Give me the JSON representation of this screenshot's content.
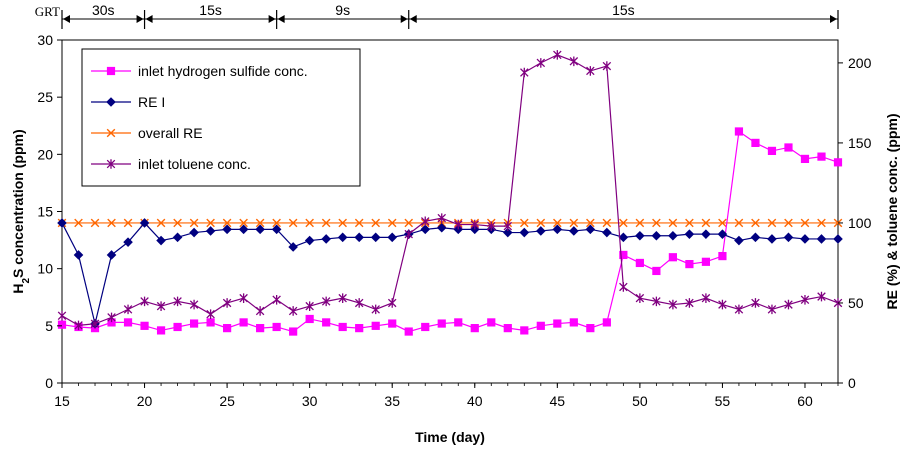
{
  "chart_data": {
    "type": "line",
    "xlabel": "Time (day)",
    "ylabel_left": "H2S concentration (ppm)",
    "ylabel_right": "RE (%) & toluene conc. (ppm)",
    "xlim": [
      15,
      62
    ],
    "ylim_left": [
      0,
      30
    ],
    "ylim_right": [
      0,
      214.3
    ],
    "x_ticks": [
      "15",
      "20",
      "25",
      "30",
      "35",
      "40",
      "45",
      "50",
      "55",
      "60"
    ],
    "y_left_ticks": [
      "0",
      "5",
      "10",
      "15",
      "20",
      "25",
      "30"
    ],
    "y_right_ticks": [
      "0",
      "50",
      "100",
      "150",
      "200"
    ],
    "grid": false,
    "legend_position": "top-left",
    "grt": {
      "label": "GRT",
      "segments": [
        {
          "start": 15,
          "end": 20,
          "label": "30s"
        },
        {
          "start": 20,
          "end": 28,
          "label": "15s"
        },
        {
          "start": 28,
          "end": 36,
          "label": "9s"
        },
        {
          "start": 36,
          "end": 62,
          "label": "15s"
        }
      ]
    },
    "series": [
      {
        "name": "inlet hydrogen sulfide conc.",
        "axis": "left",
        "color": "#FF00FF",
        "marker": "square",
        "x": [
          15,
          16,
          17,
          18,
          19,
          20,
          21,
          22,
          23,
          24,
          25,
          26,
          27,
          28,
          29,
          30,
          31,
          32,
          33,
          34,
          35,
          36,
          37,
          38,
          39,
          40,
          41,
          42,
          43,
          44,
          45,
          46,
          47,
          48,
          49,
          50,
          51,
          52,
          53,
          54,
          55,
          56,
          57,
          58,
          59,
          60,
          61,
          62
        ],
        "y": [
          5.1,
          4.9,
          4.8,
          5.3,
          5.3,
          5.0,
          4.6,
          4.9,
          5.2,
          5.3,
          4.8,
          5.3,
          4.8,
          4.9,
          4.5,
          5.6,
          5.3,
          4.9,
          4.8,
          5.0,
          5.2,
          4.5,
          4.9,
          5.2,
          5.3,
          4.8,
          5.3,
          4.8,
          4.6,
          5.0,
          5.2,
          5.3,
          4.8,
          5.3,
          11.2,
          10.5,
          9.8,
          11.0,
          10.4,
          10.6,
          11.1,
          22.0,
          21.0,
          20.3,
          20.6,
          19.6,
          19.8,
          19.3
        ]
      },
      {
        "name": "RE I",
        "axis": "right",
        "color": "#000080",
        "marker": "diamond",
        "x": [
          15,
          16,
          17,
          18,
          19,
          20,
          21,
          22,
          23,
          24,
          25,
          26,
          27,
          28,
          29,
          30,
          31,
          32,
          33,
          34,
          35,
          36,
          37,
          38,
          39,
          40,
          41,
          42,
          43,
          44,
          45,
          46,
          47,
          48,
          49,
          50,
          51,
          52,
          53,
          54,
          55,
          56,
          57,
          58,
          59,
          60,
          61,
          62
        ],
        "y": [
          100,
          80,
          37,
          80,
          88,
          100,
          89,
          91,
          94,
          95,
          96,
          96,
          96,
          96,
          85,
          89,
          90,
          91,
          91,
          91,
          91,
          93,
          96,
          97,
          96,
          96,
          96,
          94,
          94,
          95,
          96,
          95,
          96,
          94,
          91,
          92,
          92,
          92,
          93,
          93,
          93,
          89,
          91,
          90,
          91,
          90,
          90,
          90
        ]
      },
      {
        "name": "overall RE",
        "axis": "right",
        "color": "#FF6600",
        "marker": "x",
        "x": [
          15,
          16,
          17,
          18,
          19,
          20,
          21,
          22,
          23,
          24,
          25,
          26,
          27,
          28,
          29,
          30,
          31,
          32,
          33,
          34,
          35,
          36,
          37,
          38,
          39,
          40,
          41,
          42,
          43,
          44,
          45,
          46,
          47,
          48,
          49,
          50,
          51,
          52,
          53,
          54,
          55,
          56,
          57,
          58,
          59,
          60,
          61,
          62
        ],
        "y": [
          100,
          100,
          100,
          100,
          100,
          100,
          100,
          100,
          100,
          100,
          100,
          100,
          100,
          100,
          100,
          100,
          100,
          100,
          100,
          100,
          100,
          100,
          100,
          100,
          100,
          100,
          100,
          100,
          100,
          100,
          100,
          100,
          100,
          100,
          100,
          100,
          100,
          100,
          100,
          100,
          100,
          100,
          100,
          100,
          100,
          100,
          100,
          100
        ]
      },
      {
        "name": "inlet toluene conc.",
        "axis": "right",
        "color": "#800080",
        "marker": "star",
        "x": [
          15,
          16,
          17,
          18,
          19,
          20,
          21,
          22,
          23,
          24,
          25,
          26,
          27,
          28,
          29,
          30,
          31,
          32,
          33,
          34,
          35,
          36,
          37,
          38,
          39,
          40,
          41,
          42,
          43,
          44,
          45,
          46,
          47,
          48,
          49,
          50,
          51,
          52,
          53,
          54,
          55,
          56,
          57,
          58,
          59,
          60,
          61,
          62
        ],
        "y": [
          42,
          36,
          37,
          41,
          46,
          51,
          48,
          51,
          49,
          43,
          50,
          53,
          45,
          52,
          45,
          48,
          51,
          53,
          50,
          46,
          50,
          93,
          101,
          103,
          99,
          99,
          98,
          98,
          194,
          200,
          205,
          201,
          195,
          198,
          60,
          53,
          51,
          49,
          50,
          53,
          49,
          46,
          50,
          46,
          49,
          52,
          54,
          50
        ]
      }
    ]
  }
}
